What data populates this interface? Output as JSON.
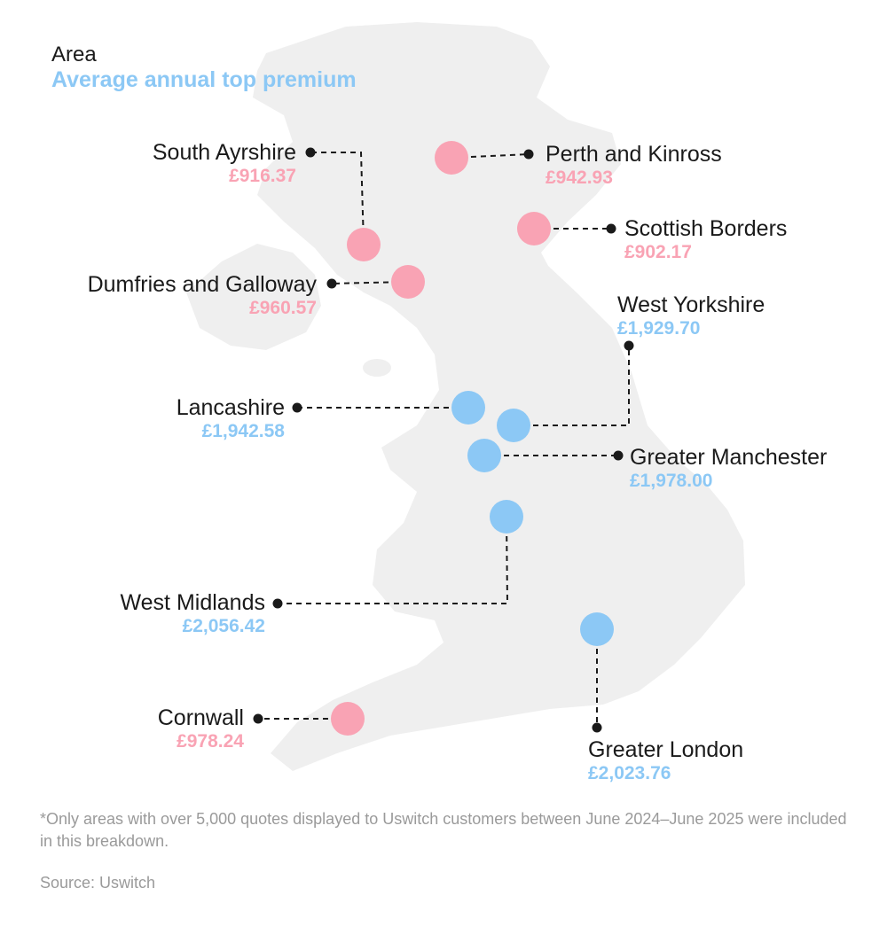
{
  "legend": {
    "title": "Area",
    "subtitle": "Average annual top premium"
  },
  "colors": {
    "under_1000": "#f9a3b4",
    "over_1000": "#8cc8f5",
    "map_fill": "#efefef",
    "leader": "#1a1a1a"
  },
  "regions": [
    {
      "id": "south-ayrshire",
      "name": "South Ayrshire",
      "value": "£916.37",
      "tier": "under_1000"
    },
    {
      "id": "perth-and-kinross",
      "name": "Perth and Kinross",
      "value": "£942.93",
      "tier": "under_1000"
    },
    {
      "id": "scottish-borders",
      "name": "Scottish Borders",
      "value": "£902.17",
      "tier": "under_1000"
    },
    {
      "id": "dumfries-and-galloway",
      "name": "Dumfries and Galloway",
      "value": "£960.57",
      "tier": "under_1000"
    },
    {
      "id": "west-yorkshire",
      "name": "West Yorkshire",
      "value": "£1,929.70",
      "tier": "over_1000"
    },
    {
      "id": "lancashire",
      "name": "Lancashire",
      "value": "£1,942.58",
      "tier": "over_1000"
    },
    {
      "id": "greater-manchester",
      "name": "Greater Manchester",
      "value": "£1,978.00",
      "tier": "over_1000"
    },
    {
      "id": "west-midlands",
      "name": "West Midlands",
      "value": "£2,056.42",
      "tier": "over_1000"
    },
    {
      "id": "cornwall",
      "name": "Cornwall",
      "value": "£978.24",
      "tier": "under_1000"
    },
    {
      "id": "greater-london",
      "name": "Greater London",
      "value": "£2,023.76",
      "tier": "over_1000"
    }
  ],
  "footnote": "*Only areas with over 5,000 quotes displayed to Uswitch customers between June 2024–June 2025 were included in this breakdown.",
  "source": "Source: Uswitch"
}
